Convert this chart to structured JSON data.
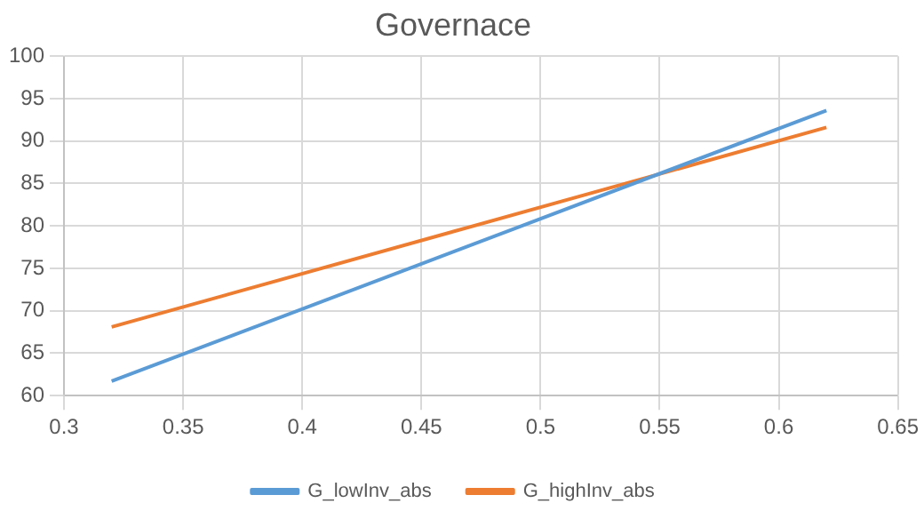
{
  "chart_data": {
    "type": "line",
    "title": "Governace",
    "x": [
      0.32,
      0.62
    ],
    "series": [
      {
        "name": "G_lowInv_abs",
        "color": "#5b9bd5",
        "values": [
          61.7,
          93.6
        ]
      },
      {
        "name": "G_highInv_abs",
        "color": "#ed7d31",
        "values": [
          68.1,
          91.6
        ]
      }
    ],
    "xlim": [
      0.3,
      0.65
    ],
    "xticks": [
      0.3,
      0.35,
      0.4,
      0.45,
      0.5,
      0.55,
      0.6,
      0.65
    ],
    "ylim": [
      60,
      100
    ],
    "yticks": [
      60,
      65,
      70,
      75,
      80,
      85,
      90,
      95,
      100
    ],
    "grid": true,
    "legend": "bottom",
    "marker": "none",
    "line_style": "solid"
  }
}
